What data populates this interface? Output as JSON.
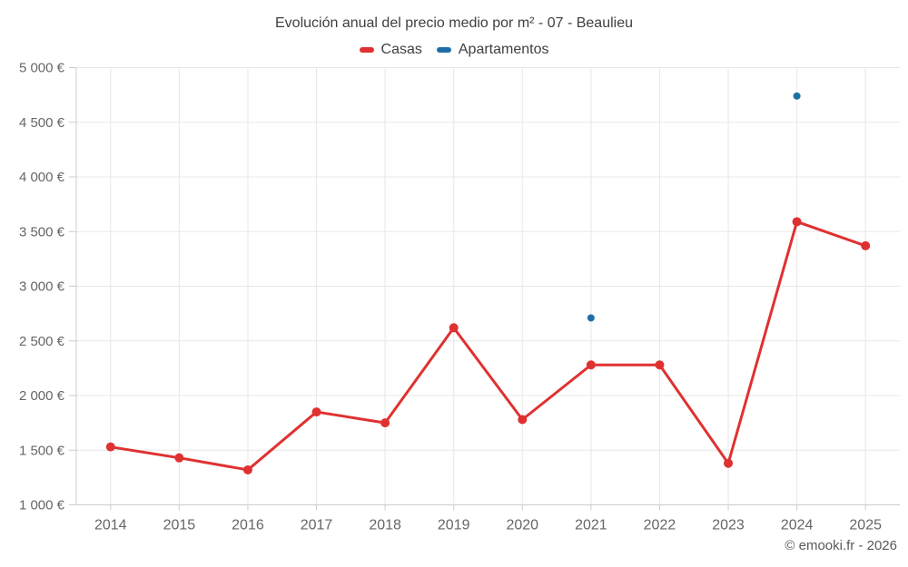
{
  "header": {
    "title": "Evolución anual del precio medio por m² - 07 - Beaulieu"
  },
  "legend": [
    {
      "label": "Casas",
      "color": "#e03131"
    },
    {
      "label": "Apartamentos",
      "color": "#1d6fa5"
    }
  ],
  "footer": {
    "credit": "© emooki.fr - 2026"
  },
  "chart_data": {
    "type": "line",
    "title": "Evolución anual del precio medio por m² - 07 - Beaulieu",
    "xlabel": "",
    "ylabel": "",
    "categories": [
      "2014",
      "2015",
      "2016",
      "2017",
      "2018",
      "2019",
      "2020",
      "2021",
      "2022",
      "2023",
      "2024",
      "2025"
    ],
    "series": [
      {
        "name": "Casas",
        "color": "#e03131",
        "marker_radius": 5,
        "values": [
          1530,
          1430,
          1320,
          1850,
          1750,
          2620,
          1780,
          2280,
          2280,
          1380,
          3590,
          3370
        ]
      },
      {
        "name": "Apartamentos",
        "color": "#1d6fa5",
        "marker_radius": 4,
        "values": [
          null,
          null,
          null,
          null,
          null,
          null,
          null,
          2710,
          null,
          null,
          4740,
          null
        ]
      }
    ],
    "ylim": [
      1000,
      5000
    ],
    "yticks": [
      {
        "value": 1000,
        "label": "1 000 €"
      },
      {
        "value": 1500,
        "label": "1 500 €"
      },
      {
        "value": 2000,
        "label": "2 000 €"
      },
      {
        "value": 2500,
        "label": "2 500 €"
      },
      {
        "value": 3000,
        "label": "3 000 €"
      },
      {
        "value": 3500,
        "label": "3 500 €"
      },
      {
        "value": 4000,
        "label": "4 000 €"
      },
      {
        "value": 4500,
        "label": "4 500 €"
      },
      {
        "value": 5000,
        "label": "5 000 €"
      }
    ],
    "grid": true,
    "legend_position": "top",
    "colors": {
      "grid": "#e8e8e8",
      "axis": "#cccccc",
      "tick_labels": "#666666",
      "title_text": "#3f3f3f"
    }
  }
}
